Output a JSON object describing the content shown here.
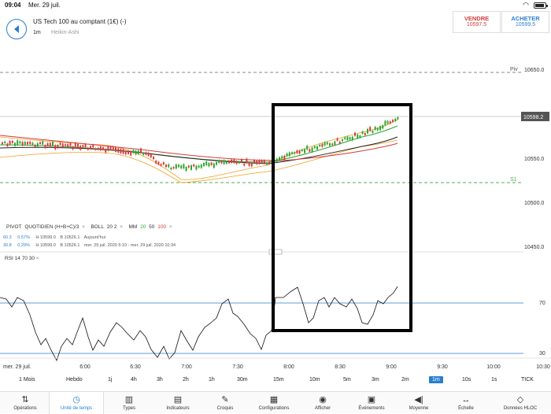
{
  "status_bar": {
    "time": "09:04",
    "date": "Mer. 29 juil."
  },
  "header": {
    "title": "US Tech 100 au comptant (1€) (-)",
    "timeframe": "1m",
    "chart_type": "Heikin-Ashi"
  },
  "trade": {
    "sell_label": "VENDRE",
    "sell_price": "10597.5",
    "buy_label": "ACHETER",
    "buy_price": "10599.5"
  },
  "price_axis": {
    "labels": [
      "10650.0",
      "10550.0",
      "10500.0",
      "10450.0"
    ],
    "current": "10598.2",
    "pivot_label": "Piv",
    "s1_label": "S1"
  },
  "indicators": {
    "pivot": "PIVOT",
    "pivot_detail": "QUOTIDIEN (H+B+C)/3",
    "pivot_close": "×",
    "boll": "BOLL",
    "boll_params": "20 2",
    "boll_close": "×",
    "mm": "MM",
    "mm_20": "20",
    "mm_50": "50",
    "mm_100": "100",
    "mm_close": "×",
    "row1": {
      "v1": "60.3",
      "v2": "0.57%",
      "h": "H 10599.0",
      "b": "B 10526.1",
      "period": "Aujourd'hui"
    },
    "row2": {
      "v1": "30.8",
      "v2": "0.29%",
      "h": "H 10599.0",
      "b": "B 10526.1",
      "period": "mer. 29 juil. 2020 5:10 - mer. 29 juil. 2020 10:34"
    }
  },
  "rsi": {
    "label": "RSI",
    "params": "14 70 30",
    "close": "×",
    "level_high": "70",
    "level_low": "30"
  },
  "time_axis": {
    "first": "mer. 29 juil.",
    "ticks": [
      "6:00",
      "6:30",
      "7:00",
      "7:30",
      "8:00",
      "8:30",
      "9:00",
      "9:30",
      "10:00",
      "10:30"
    ]
  },
  "timeframes": [
    "1 Mois",
    "Hebdo",
    "1j",
    "4h",
    "3h",
    "2h",
    "1h",
    "30m",
    "15m",
    "10m",
    "5m",
    "3m",
    "2m",
    "1m",
    "10s",
    "1s",
    "TICK"
  ],
  "timeframe_active": "1m",
  "toolbar": [
    "Opérations",
    "Unité de temps",
    "Types",
    "Indicateurs",
    "Croquis",
    "Configurations",
    "Afficher",
    "Événements",
    "Moyenne",
    "Échelle",
    "Données HLOC"
  ],
  "toolbar_active": "Unité de temps",
  "colors": {
    "accent": "#2a7fd0",
    "sell": "#d63b3b",
    "up_candle": "#2fa52f",
    "down_candle": "#d63b3b",
    "boll": "#f0a020",
    "mm20": "#2fa52f",
    "mm50": "#222222",
    "mm100": "#d63b3b"
  }
}
